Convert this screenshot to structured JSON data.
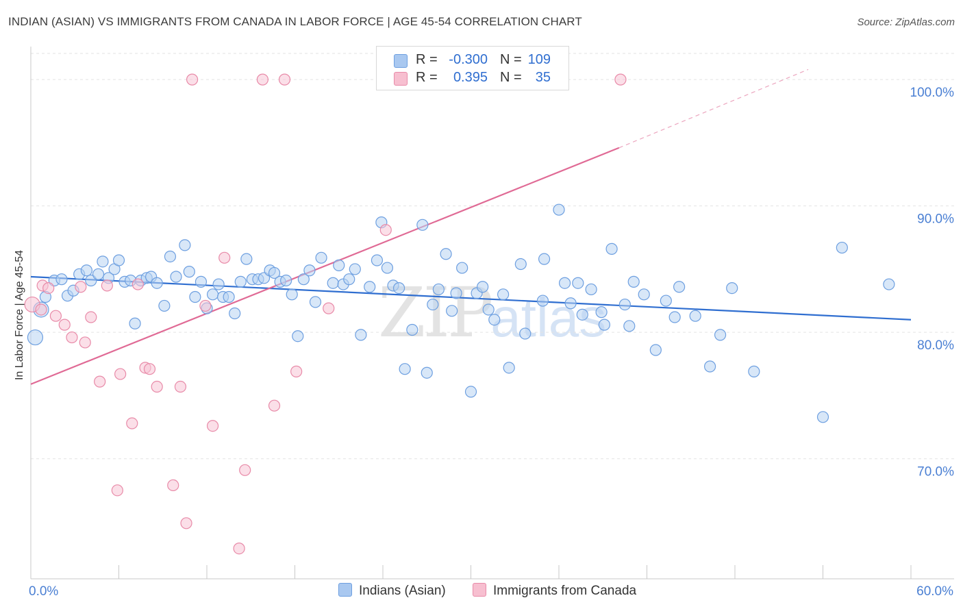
{
  "title": "INDIAN (ASIAN) VS IMMIGRANTS FROM CANADA IN LABOR FORCE | AGE 45-54 CORRELATION CHART",
  "source": "Source: ZipAtlas.com",
  "watermark": {
    "zip": "ZIP",
    "atlas": "atlas"
  },
  "legend": {
    "rows": [
      {
        "r_label": "R =",
        "r_value": "-0.300",
        "n_label": "N =",
        "n_value": "109",
        "color": "#a9c8f0",
        "border": "#6d9fe0"
      },
      {
        "r_label": "R =",
        "r_value": "0.395",
        "n_label": "N =",
        "n_value": "35",
        "color": "#f7bfd0",
        "border": "#e88aa8"
      }
    ]
  },
  "bottom_legend": [
    {
      "label": "Indians (Asian)",
      "color": "#a9c8f0",
      "border": "#6d9fe0"
    },
    {
      "label": "Immigrants from Canada",
      "color": "#f7bfd0",
      "border": "#e88aa8"
    }
  ],
  "chart_data": {
    "type": "scatter",
    "title": "INDIAN (ASIAN) VS IMMIGRANTS FROM CANADA IN LABOR FORCE | AGE 45-54 CORRELATION CHART",
    "xlabel": "",
    "ylabel": "In Labor Force | Age 45-54",
    "xlim": [
      0,
      60
    ],
    "ylim": [
      60.5,
      102.5
    ],
    "x_tick_labels": [
      {
        "value": 0,
        "label": "0.0%"
      },
      {
        "value": 60,
        "label": "60.0%"
      }
    ],
    "y_tick_labels": [
      {
        "value": 100,
        "label": "100.0%"
      },
      {
        "value": 90,
        "label": "90.0%"
      },
      {
        "value": 80,
        "label": "80.0%"
      },
      {
        "value": 70,
        "label": "70.0%"
      }
    ],
    "x_minor_ticks": [
      6,
      12,
      18,
      24,
      30,
      36,
      42,
      48,
      54,
      60
    ],
    "grid": "horizontal dashed",
    "series": [
      {
        "name": "Indians (Asian)",
        "color": "#6d9fe0",
        "fill": "#b8d3f3",
        "trend": {
          "x1": 0,
          "y1": 84.4,
          "x2": 60,
          "y2": 81.0,
          "color": "#2f6ed0"
        },
        "points": [
          [
            0.3,
            79.6
          ],
          [
            0.7,
            81.8
          ],
          [
            1.0,
            82.8
          ],
          [
            1.6,
            84.1
          ],
          [
            2.1,
            84.2
          ],
          [
            2.5,
            82.9
          ],
          [
            2.9,
            83.3
          ],
          [
            3.3,
            84.6
          ],
          [
            3.8,
            84.9
          ],
          [
            4.1,
            84.1
          ],
          [
            4.6,
            84.6
          ],
          [
            4.9,
            85.6
          ],
          [
            5.3,
            84.3
          ],
          [
            5.7,
            85.0
          ],
          [
            6.0,
            85.7
          ],
          [
            6.4,
            84.0
          ],
          [
            6.8,
            84.1
          ],
          [
            7.1,
            80.7
          ],
          [
            7.5,
            84.1
          ],
          [
            7.9,
            84.3
          ],
          [
            8.2,
            84.4
          ],
          [
            8.6,
            83.9
          ],
          [
            9.1,
            82.1
          ],
          [
            9.5,
            86.0
          ],
          [
            9.9,
            84.4
          ],
          [
            10.5,
            86.9
          ],
          [
            10.8,
            84.8
          ],
          [
            11.2,
            82.8
          ],
          [
            11.6,
            84.0
          ],
          [
            12.0,
            81.9
          ],
          [
            12.4,
            83.0
          ],
          [
            12.8,
            83.8
          ],
          [
            13.1,
            82.8
          ],
          [
            13.5,
            82.8
          ],
          [
            13.9,
            81.5
          ],
          [
            14.3,
            84.0
          ],
          [
            14.7,
            85.8
          ],
          [
            15.1,
            84.2
          ],
          [
            15.5,
            84.2
          ],
          [
            15.9,
            84.3
          ],
          [
            16.3,
            84.9
          ],
          [
            16.6,
            84.7
          ],
          [
            17.0,
            84.0
          ],
          [
            17.4,
            84.1
          ],
          [
            17.8,
            83.0
          ],
          [
            18.2,
            79.7
          ],
          [
            18.6,
            84.2
          ],
          [
            19.0,
            84.9
          ],
          [
            19.4,
            82.4
          ],
          [
            19.8,
            85.9
          ],
          [
            20.6,
            83.9
          ],
          [
            21.0,
            85.3
          ],
          [
            21.3,
            83.8
          ],
          [
            21.7,
            84.2
          ],
          [
            22.1,
            85.0
          ],
          [
            22.5,
            79.8
          ],
          [
            23.1,
            83.6
          ],
          [
            23.6,
            85.7
          ],
          [
            23.9,
            88.7
          ],
          [
            24.3,
            85.1
          ],
          [
            24.7,
            83.7
          ],
          [
            25.1,
            83.5
          ],
          [
            25.5,
            77.1
          ],
          [
            26.0,
            80.2
          ],
          [
            26.7,
            88.5
          ],
          [
            27.0,
            76.8
          ],
          [
            27.4,
            82.2
          ],
          [
            27.8,
            83.4
          ],
          [
            28.3,
            86.2
          ],
          [
            28.7,
            81.7
          ],
          [
            29.0,
            83.1
          ],
          [
            29.4,
            85.1
          ],
          [
            30.0,
            75.3
          ],
          [
            30.4,
            83.1
          ],
          [
            30.8,
            83.6
          ],
          [
            31.2,
            81.8
          ],
          [
            31.6,
            81.0
          ],
          [
            32.2,
            83.0
          ],
          [
            32.6,
            77.2
          ],
          [
            33.4,
            85.4
          ],
          [
            33.7,
            79.9
          ],
          [
            34.9,
            82.5
          ],
          [
            35.0,
            85.8
          ],
          [
            36.0,
            89.7
          ],
          [
            36.4,
            83.9
          ],
          [
            36.8,
            82.3
          ],
          [
            37.3,
            83.9
          ],
          [
            37.6,
            81.4
          ],
          [
            38.2,
            83.4
          ],
          [
            38.9,
            81.6
          ],
          [
            39.1,
            80.6
          ],
          [
            39.6,
            86.6
          ],
          [
            40.5,
            82.2
          ],
          [
            40.8,
            80.5
          ],
          [
            41.1,
            84.0
          ],
          [
            41.8,
            83.0
          ],
          [
            42.6,
            78.6
          ],
          [
            43.3,
            82.5
          ],
          [
            43.9,
            81.2
          ],
          [
            44.2,
            83.6
          ],
          [
            45.3,
            81.3
          ],
          [
            46.3,
            77.3
          ],
          [
            47.0,
            79.8
          ],
          [
            47.8,
            83.5
          ],
          [
            49.3,
            76.9
          ],
          [
            54.0,
            73.3
          ],
          [
            55.3,
            86.7
          ],
          [
            58.5,
            83.8
          ]
        ]
      },
      {
        "name": "Immigrants from Canada",
        "color": "#e88aa8",
        "fill": "#f7c5d5",
        "trend": {
          "x1": 0,
          "y1": 75.9,
          "x2": 40.1,
          "y2": 94.6,
          "dashed_to_x": 53,
          "dashed_to_y": 100.8,
          "color": "#e06a95"
        },
        "points": [
          [
            0.1,
            82.2
          ],
          [
            0.7,
            81.8
          ],
          [
            0.8,
            83.7
          ],
          [
            1.2,
            83.5
          ],
          [
            1.7,
            81.3
          ],
          [
            2.3,
            80.6
          ],
          [
            2.8,
            79.6
          ],
          [
            3.4,
            83.6
          ],
          [
            3.7,
            79.2
          ],
          [
            4.1,
            81.2
          ],
          [
            4.7,
            76.1
          ],
          [
            5.2,
            83.7
          ],
          [
            5.9,
            67.5
          ],
          [
            6.1,
            76.7
          ],
          [
            6.9,
            72.8
          ],
          [
            7.3,
            83.8
          ],
          [
            7.8,
            77.2
          ],
          [
            8.1,
            77.1
          ],
          [
            8.6,
            75.7
          ],
          [
            9.7,
            67.9
          ],
          [
            10.2,
            75.7
          ],
          [
            10.6,
            64.9
          ],
          [
            11.0,
            100.0
          ],
          [
            11.9,
            82.1
          ],
          [
            12.4,
            72.6
          ],
          [
            13.2,
            85.9
          ],
          [
            14.2,
            62.9
          ],
          [
            14.6,
            69.1
          ],
          [
            15.8,
            100.0
          ],
          [
            16.6,
            74.2
          ],
          [
            17.3,
            100.0
          ],
          [
            18.1,
            76.9
          ],
          [
            20.3,
            81.9
          ],
          [
            24.2,
            88.1
          ],
          [
            40.2,
            100.0
          ]
        ]
      }
    ]
  }
}
